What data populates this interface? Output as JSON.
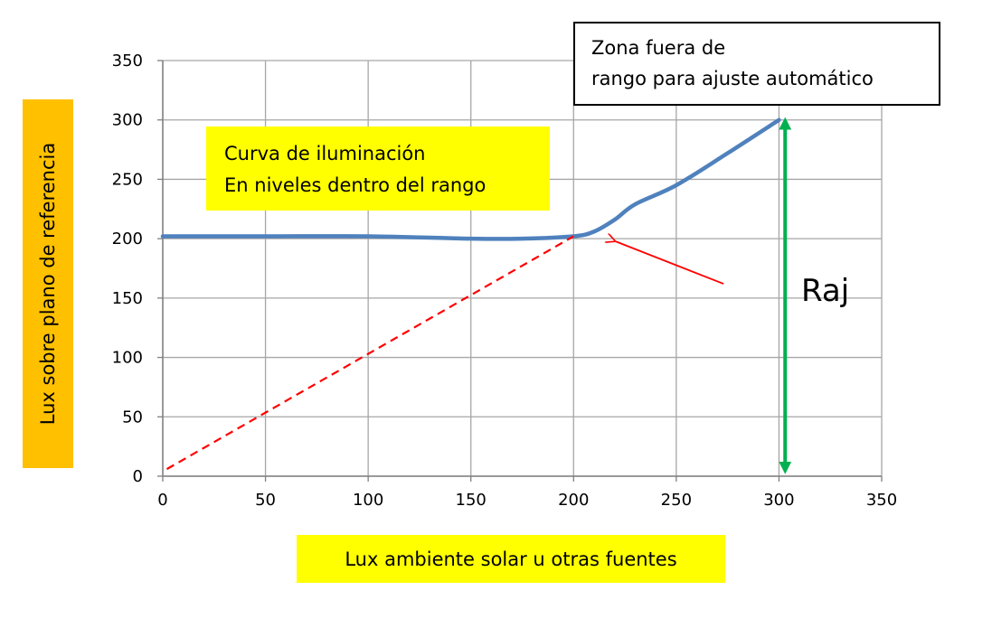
{
  "colors": {
    "label_background": "#FFFF00",
    "ylabel_background": "#FFC000",
    "curve": "#4F81BD",
    "reference_line": "#FF0000",
    "arrow": "#FF0000",
    "range_arrow": "#00B050",
    "grid": "#A6A6A6"
  },
  "annotations": {
    "curve_label_line1": "Curva de iluminación",
    "curve_label_line2": "En niveles dentro del rango",
    "zone_label_line1": "Zona fuera de",
    "zone_label_line2": "rango para ajuste automático",
    "range_label": "Raj"
  },
  "chart_data": {
    "type": "line",
    "xlabel": "Lux ambiente solar u otras fuentes",
    "ylabel": "Lux sobre plano de referencia",
    "xlim": [
      0,
      350
    ],
    "ylim": [
      0,
      350
    ],
    "x_ticks": [
      0,
      50,
      100,
      150,
      200,
      250,
      300,
      350
    ],
    "y_ticks": [
      0,
      50,
      100,
      150,
      200,
      250,
      300,
      350
    ],
    "grid": true,
    "legend": "none",
    "series": [
      {
        "style": "solid",
        "color": "#4F81BD",
        "points": [
          [
            0,
            202
          ],
          [
            50,
            202
          ],
          [
            100,
            202
          ],
          [
            150,
            200
          ],
          [
            175,
            200
          ],
          [
            200,
            202
          ],
          [
            210,
            206
          ],
          [
            220,
            216
          ],
          [
            230,
            229
          ],
          [
            250,
            245
          ],
          [
            275,
            272
          ],
          [
            300,
            300
          ]
        ]
      },
      {
        "style": "dashed",
        "color": "#FF0000",
        "points": [
          [
            2,
            6
          ],
          [
            200,
            202
          ]
        ]
      }
    ],
    "arrows": [
      {
        "color": "#FF0000",
        "from": [
          273,
          162
        ],
        "to": [
          220,
          198
        ]
      },
      {
        "color": "#00B050",
        "double_headed": true,
        "from": [
          303,
          297
        ],
        "to": [
          303,
          7
        ]
      }
    ]
  }
}
